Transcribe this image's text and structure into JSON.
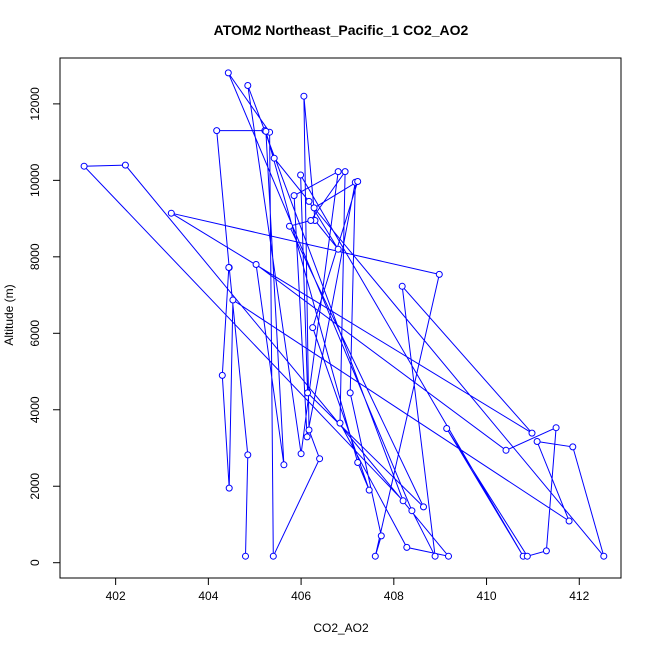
{
  "chart_data": {
    "type": "line",
    "title": "ATOM2 Northeast_Pacific_1 CO2_AO2",
    "xlabel": "CO2_AO2",
    "ylabel": "Altitude (m)",
    "xlim": [
      400.8,
      412.9
    ],
    "ylim": [
      -400,
      13200
    ],
    "x_ticks": [
      402,
      404,
      406,
      408,
      410,
      412
    ],
    "y_ticks": [
      0,
      2000,
      4000,
      6000,
      8000,
      10000,
      12000
    ],
    "x_tick_labels": [
      "402",
      "404",
      "406",
      "408",
      "410",
      "412"
    ],
    "y_tick_labels": [
      "0",
      "2000",
      "4000",
      "6000",
      "8000",
      "10000",
      "12000"
    ],
    "series_color": "#0000ff",
    "series": [
      {
        "points": [
          [
            404.8,
            170
          ],
          [
            404.85,
            2820
          ],
          [
            404.45,
            7720
          ],
          [
            404.18,
            11300
          ],
          [
            405.22,
            11300
          ],
          [
            405.42,
            10580
          ],
          [
            406.17,
            9450
          ],
          [
            406.8,
            8200
          ],
          [
            406.3,
            8950
          ],
          [
            406.06,
            12200
          ],
          [
            406.17,
            3470
          ],
          [
            406.4,
            2720
          ],
          [
            405.4,
            170
          ],
          [
            405.32,
            11260
          ],
          [
            404.43,
            12810
          ],
          [
            408.39,
            1360
          ],
          [
            408.89,
            170
          ],
          [
            408.18,
            7230
          ],
          [
            410.98,
            3390
          ],
          [
            403.2,
            9140
          ],
          [
            408.98,
            7540
          ],
          [
            407.6,
            170
          ],
          [
            407.73,
            700
          ],
          [
            407.06,
            4440
          ],
          [
            407.17,
            9950
          ],
          [
            406.13,
            3290
          ],
          [
            405.85,
            9600
          ],
          [
            406.8,
            10230
          ],
          [
            406.0,
            2850
          ],
          [
            404.85,
            12480
          ],
          [
            408.2,
            1620
          ],
          [
            401.32,
            10370
          ],
          [
            402.21,
            10400
          ],
          [
            409.18,
            170
          ],
          [
            408.28,
            400
          ],
          [
            406.84,
            3650
          ],
          [
            406.95,
            10230
          ],
          [
            406.21,
            8950
          ],
          [
            405.75,
            8800
          ],
          [
            408.64,
            1460
          ],
          [
            406.14,
            4440
          ],
          [
            405.99,
            10140
          ],
          [
            410.79,
            170
          ],
          [
            409.14,
            3510
          ],
          [
            410.88,
            170
          ],
          [
            411.29,
            310
          ],
          [
            411.5,
            3530
          ],
          [
            410.42,
            2940
          ],
          [
            405.03,
            7800
          ],
          [
            405.63,
            2560
          ],
          [
            405.24,
            11280
          ],
          [
            407.22,
            2620
          ],
          [
            407.47,
            1900
          ],
          [
            406.25,
            6150
          ],
          [
            407.22,
            9970
          ],
          [
            406.28,
            9280
          ],
          [
            412.53,
            170
          ],
          [
            411.86,
            3030
          ],
          [
            411.09,
            3170
          ],
          [
            411.78,
            1090
          ],
          [
            404.53,
            6870
          ],
          [
            404.45,
            1950
          ],
          [
            404.3,
            4900
          ],
          [
            404.44,
            7720
          ]
        ]
      }
    ]
  }
}
